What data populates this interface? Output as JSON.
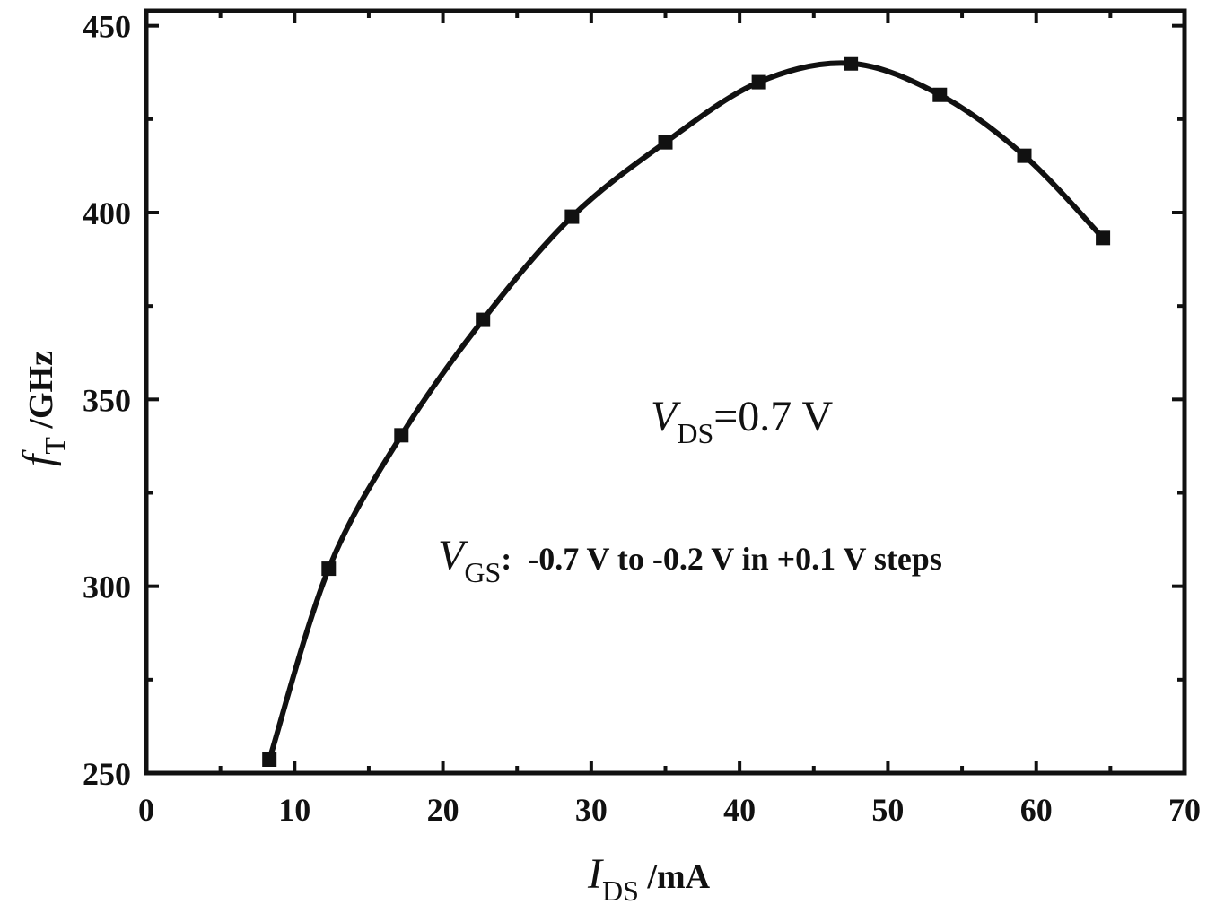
{
  "chart_data": {
    "type": "line",
    "x_label": {
      "symbol": "I",
      "subscript": "DS",
      "unit": " /mA"
    },
    "y_label": {
      "symbol": "f",
      "subscript": "T",
      "unit": " /GHz"
    },
    "x": [
      8.3,
      12.3,
      17.2,
      22.7,
      28.7,
      35.0,
      41.3,
      47.5,
      53.5,
      59.2,
      64.5
    ],
    "series": [
      {
        "color": "#111111",
        "values": [
          253.6,
          304.7,
          340.4,
          371.3,
          398.9,
          418.8,
          434.9,
          439.9,
          431.5,
          415.2,
          393.2
        ]
      }
    ],
    "xlim": [
      0,
      70
    ],
    "xticks": [
      0,
      10,
      20,
      30,
      40,
      50,
      60,
      70
    ],
    "xticks_minor": [
      5,
      15,
      25,
      35,
      45,
      55,
      65
    ],
    "ylim": [
      250,
      454
    ],
    "yticks": [
      250,
      300,
      350,
      400,
      450
    ],
    "yticks_minor": [
      275,
      325,
      375,
      425
    ],
    "smooth": true,
    "marker": "square",
    "annotations": [
      {
        "symbol": "V",
        "subscript": "DS",
        "text": "=0.7 V"
      },
      {
        "symbol": "V",
        "subscript": "GS",
        "text": ":  -0.7 V to -0.2 V in +0.1 V steps"
      }
    ]
  }
}
